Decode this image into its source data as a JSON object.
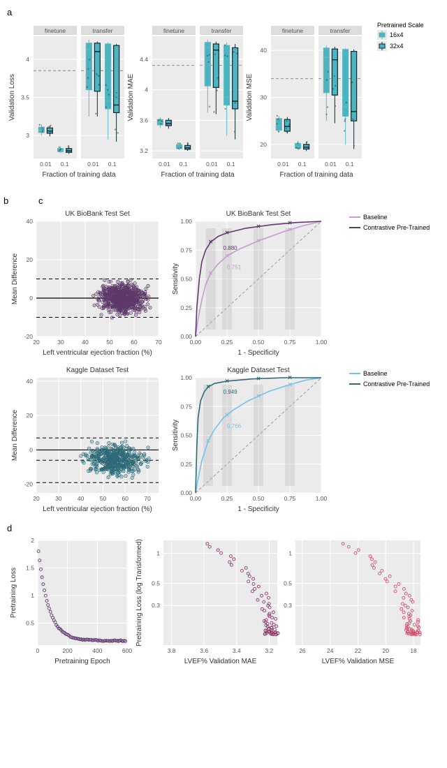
{
  "a": {
    "facet_labels": [
      "finetune",
      "transfer"
    ],
    "x_label": "Fraction of training data",
    "x_ticks": [
      "0.01",
      "0.1"
    ],
    "legend_title": "Pretrained Scale",
    "legend_items": [
      "16x4",
      "32x4"
    ],
    "box_fill": "#4db3bf",
    "box_border_light": "#5fb8c2",
    "box_border_dark": "#0b2a30",
    "ref_line_color": "#999999",
    "panels": [
      {
        "y_label": "Validation Loss",
        "y_ticks": [
          3.0,
          3.5,
          4.0
        ],
        "y_range": [
          2.7,
          4.3
        ],
        "ref_y": 3.85,
        "finetune": {
          "0.01": [
            {
              "q1": 3.04,
              "med": 3.07,
              "q3": 3.11,
              "lo": 3.0,
              "hi": 3.15
            },
            {
              "q1": 3.03,
              "med": 3.06,
              "q3": 3.1,
              "lo": 2.99,
              "hi": 3.13
            }
          ],
          "0.1": [
            {
              "q1": 2.79,
              "med": 2.81,
              "q3": 2.83,
              "lo": 2.77,
              "hi": 2.86
            },
            {
              "q1": 2.78,
              "med": 2.8,
              "q3": 2.83,
              "lo": 2.76,
              "hi": 2.85
            }
          ]
        },
        "transfer": {
          "0.01": [
            {
              "q1": 3.6,
              "med": 4.12,
              "q3": 4.21,
              "lo": 3.25,
              "hi": 4.25
            },
            {
              "q1": 3.58,
              "med": 4.1,
              "q3": 4.21,
              "lo": 3.25,
              "hi": 4.23
            }
          ],
          "0.1": [
            {
              "q1": 3.35,
              "med": 3.45,
              "q3": 4.2,
              "lo": 2.95,
              "hi": 4.22
            },
            {
              "q1": 3.3,
              "med": 3.4,
              "q3": 4.18,
              "lo": 2.92,
              "hi": 4.2
            }
          ]
        }
      },
      {
        "y_label": "Validation MAE",
        "y_ticks": [
          3.2,
          3.6,
          4.0,
          4.4
        ],
        "y_range": [
          3.1,
          4.7
        ],
        "ref_y": 4.32,
        "finetune": {
          "0.01": [
            {
              "q1": 3.54,
              "med": 3.57,
              "q3": 3.61,
              "lo": 3.5,
              "hi": 3.64
            },
            {
              "q1": 3.53,
              "med": 3.56,
              "q3": 3.6,
              "lo": 3.49,
              "hi": 3.63
            }
          ],
          "0.1": [
            {
              "q1": 3.23,
              "med": 3.25,
              "q3": 3.28,
              "lo": 3.21,
              "hi": 3.31
            },
            {
              "q1": 3.22,
              "med": 3.24,
              "q3": 3.27,
              "lo": 3.2,
              "hi": 3.3
            }
          ]
        },
        "transfer": {
          "0.01": [
            {
              "q1": 4.05,
              "med": 4.55,
              "q3": 4.62,
              "lo": 3.7,
              "hi": 4.65
            },
            {
              "q1": 4.03,
              "med": 4.52,
              "q3": 4.6,
              "lo": 3.68,
              "hi": 4.63
            }
          ],
          "0.1": [
            {
              "q1": 3.8,
              "med": 3.9,
              "q3": 4.58,
              "lo": 3.4,
              "hi": 4.62
            },
            {
              "q1": 3.75,
              "med": 3.85,
              "q3": 4.55,
              "lo": 3.35,
              "hi": 4.6
            }
          ]
        }
      },
      {
        "y_label": "Validation MSE",
        "y_ticks": [
          20,
          30,
          40
        ],
        "y_range": [
          17,
          43
        ],
        "ref_y": 34,
        "finetune": {
          "0.01": [
            {
              "q1": 23,
              "med": 24,
              "q3": 25.5,
              "lo": 22.5,
              "hi": 26
            },
            {
              "q1": 22.8,
              "med": 23.8,
              "q3": 25.3,
              "lo": 22.3,
              "hi": 25.8
            }
          ],
          "0.1": [
            {
              "q1": 19.2,
              "med": 19.6,
              "q3": 20.2,
              "lo": 18.8,
              "hi": 20.8
            },
            {
              "q1": 19.0,
              "med": 19.4,
              "q3": 20.0,
              "lo": 18.6,
              "hi": 20.6
            }
          ]
        },
        "transfer": {
          "0.01": [
            {
              "q1": 31,
              "med": 38.5,
              "q3": 40.5,
              "lo": 25,
              "hi": 41
            },
            {
              "q1": 30.5,
              "med": 38,
              "q3": 40.3,
              "lo": 24.5,
              "hi": 40.8
            }
          ],
          "0.1": [
            {
              "q1": 26,
              "med": 28,
              "q3": 40.2,
              "lo": 20,
              "hi": 40.5
            },
            {
              "q1": 25,
              "med": 27,
              "q3": 39.8,
              "lo": 19,
              "hi": 40.2
            }
          ]
        }
      }
    ]
  },
  "b": {
    "x_label": "Left ventricular ejection fraction (%)",
    "y_label": "Mean Difference",
    "plots": [
      {
        "title": "UK BioBank Test Set",
        "x_range": [
          20,
          70
        ],
        "x_ticks": [
          20,
          30,
          40,
          50,
          60,
          70
        ],
        "y_range": [
          -20,
          40
        ],
        "y_ticks": [
          -20,
          0,
          20,
          40
        ],
        "ref_lines": [
          0,
          10,
          -10
        ],
        "point_color": "#5e3a6b",
        "n_points": 700,
        "x_mean": 55,
        "x_sd": 7,
        "y_mean": 0,
        "y_sd": 6
      },
      {
        "title": "Kaggle Dataset Test",
        "x_range": [
          20,
          75
        ],
        "x_ticks": [
          20,
          30,
          40,
          50,
          60,
          70
        ],
        "y_range": [
          -25,
          42
        ],
        "y_ticks": [
          -20,
          0,
          20,
          40
        ],
        "ref_lines": [
          0,
          -6,
          -19,
          7
        ],
        "point_color": "#2d6a78",
        "n_points": 450,
        "x_mean": 55,
        "x_sd": 10,
        "y_mean": -6,
        "y_sd": 7
      }
    ]
  },
  "c": {
    "x_label": "1 - Specificity",
    "y_label": "Sensitivity",
    "ticks": [
      0.0,
      0.25,
      0.5,
      0.75,
      1.0
    ],
    "legend_items": [
      "Baseline",
      "Contrastive Pre-Trained"
    ],
    "plots": [
      {
        "title": "UK BioBank Test Set",
        "baseline_color": "#c89ad1",
        "pretrained_color": "#5e3a6b",
        "auc_baseline": "0.751",
        "auc_pretrained": "0.880",
        "baseline_pts": [
          [
            0,
            0
          ],
          [
            0.02,
            0.15
          ],
          [
            0.05,
            0.32
          ],
          [
            0.08,
            0.45
          ],
          [
            0.12,
            0.55
          ],
          [
            0.18,
            0.63
          ],
          [
            0.25,
            0.7
          ],
          [
            0.35,
            0.76
          ],
          [
            0.5,
            0.83
          ],
          [
            0.7,
            0.91
          ],
          [
            0.85,
            0.96
          ],
          [
            1,
            1
          ]
        ],
        "pretrained_pts": [
          [
            0,
            0
          ],
          [
            0.01,
            0.25
          ],
          [
            0.03,
            0.5
          ],
          [
            0.05,
            0.65
          ],
          [
            0.08,
            0.75
          ],
          [
            0.12,
            0.82
          ],
          [
            0.18,
            0.87
          ],
          [
            0.25,
            0.9
          ],
          [
            0.4,
            0.94
          ],
          [
            0.6,
            0.97
          ],
          [
            0.8,
            0.99
          ],
          [
            1,
            1
          ]
        ],
        "markers_x": [
          0.12,
          0.25,
          0.5,
          0.75
        ]
      },
      {
        "title": "Kaggle Dataset Test",
        "baseline_color": "#74c4e8",
        "pretrained_color": "#2d6a78",
        "auc_baseline": "0.766",
        "auc_pretrained": "0.949",
        "baseline_pts": [
          [
            0,
            0
          ],
          [
            0.02,
            0.12
          ],
          [
            0.05,
            0.28
          ],
          [
            0.1,
            0.45
          ],
          [
            0.15,
            0.55
          ],
          [
            0.22,
            0.65
          ],
          [
            0.3,
            0.72
          ],
          [
            0.42,
            0.8
          ],
          [
            0.58,
            0.88
          ],
          [
            0.75,
            0.94
          ],
          [
            0.88,
            0.98
          ],
          [
            1,
            1
          ]
        ],
        "pretrained_pts": [
          [
            0,
            0
          ],
          [
            0.01,
            0.4
          ],
          [
            0.02,
            0.65
          ],
          [
            0.04,
            0.8
          ],
          [
            0.07,
            0.88
          ],
          [
            0.1,
            0.92
          ],
          [
            0.15,
            0.95
          ],
          [
            0.25,
            0.97
          ],
          [
            0.45,
            0.99
          ],
          [
            0.7,
            1.0
          ],
          [
            1,
            1
          ]
        ],
        "markers_x": [
          0.1,
          0.25,
          0.5,
          0.75
        ]
      }
    ]
  },
  "d": {
    "plots": [
      {
        "x_label": "Pretraining Epoch",
        "y_label": "Pretraining Loss",
        "x_range": [
          0,
          600
        ],
        "x_ticks": [
          0,
          200,
          400,
          600
        ],
        "y_range": [
          0.1,
          2.0
        ],
        "y_ticks": [
          0.5,
          1.0,
          1.5,
          2.0
        ],
        "point_color": "#5e3a6b",
        "curve": "decay"
      },
      {
        "x_label": "LVEF% Validation MAE",
        "y_label": "Pretraining Loss (log Transformed)",
        "x_range": [
          3.15,
          3.85
        ],
        "x_ticks": [
          3.8,
          3.6,
          3.4,
          3.2
        ],
        "y_range": [
          0.12,
          1.35
        ],
        "y_ticks": [
          0.3,
          0.5,
          1.0
        ],
        "point_color": "#8e3a6b",
        "x_reverse": true,
        "y_log": true
      },
      {
        "x_label": "LVEF% Validation MSE",
        "y_label": "",
        "x_range": [
          17.5,
          26.5
        ],
        "x_ticks": [
          26,
          24,
          22,
          20,
          18
        ],
        "y_range": [
          0.12,
          1.35
        ],
        "y_ticks": [
          0.3,
          0.5,
          1.0
        ],
        "point_color": "#d44f6f",
        "x_reverse": true,
        "y_log": true
      }
    ]
  }
}
